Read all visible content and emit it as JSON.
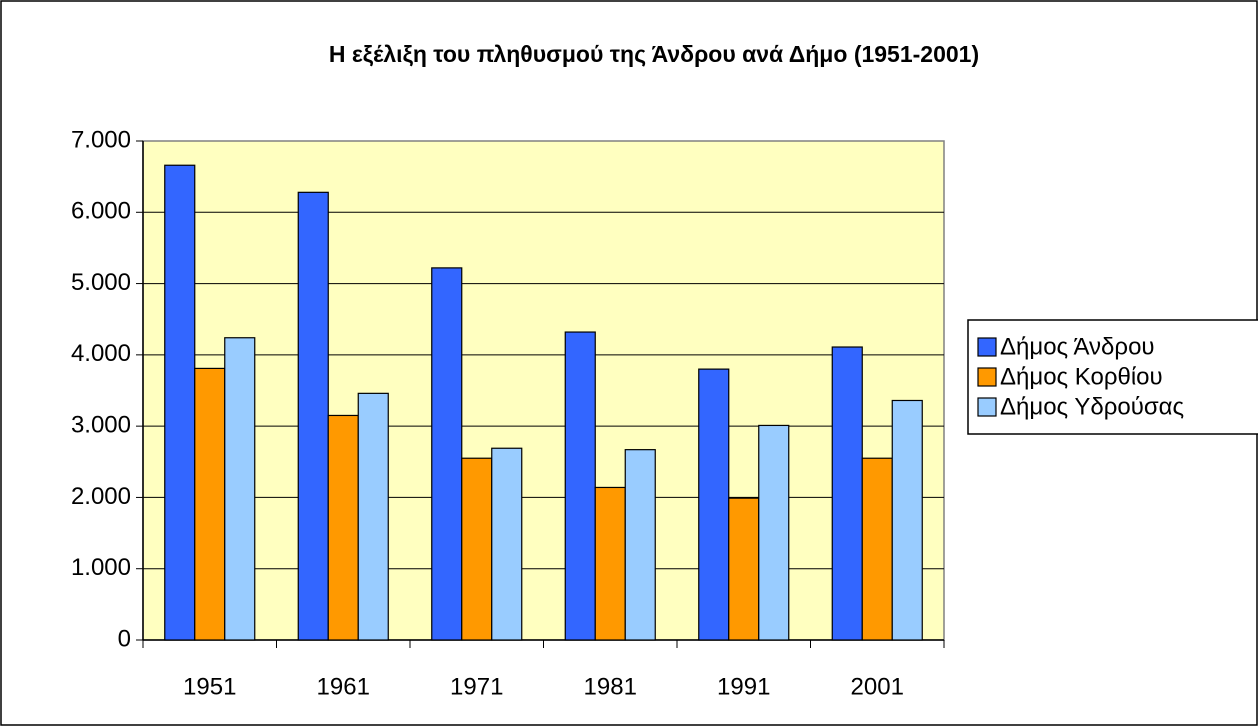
{
  "chart_data": {
    "type": "bar",
    "title": "Η εξέλιξη του πληθυσμού της Άνδρου ανά Δήμο (1951-2001)",
    "categories": [
      "1951",
      "1961",
      "1971",
      "1981",
      "1991",
      "2001"
    ],
    "series": [
      {
        "name": "Δήμος Άνδρου",
        "color": "#3366ff",
        "values": [
          6660,
          6280,
          5220,
          4320,
          3800,
          4110
        ]
      },
      {
        "name": "Δήμος Κορθίου",
        "color": "#ff9900",
        "values": [
          3810,
          3150,
          2550,
          2140,
          1990,
          2550
        ]
      },
      {
        "name": "Δήμος Υδρούσας",
        "color": "#99ccff",
        "values": [
          4240,
          3460,
          2690,
          2670,
          3010,
          3360
        ]
      }
    ],
    "ylim": [
      0,
      7000
    ],
    "yticks": [
      0,
      {
        "value": 1000,
        "label": "1.000"
      },
      {
        "value": 2000,
        "label": "2.000"
      },
      {
        "value": 3000,
        "label": "3.000"
      },
      {
        "value": 4000,
        "label": "4.000"
      },
      {
        "value": 5000,
        "label": "5.000"
      },
      {
        "value": 6000,
        "label": "6.000"
      },
      {
        "value": 7000,
        "label": "7.000"
      }
    ],
    "grid": true,
    "legend": "right"
  }
}
